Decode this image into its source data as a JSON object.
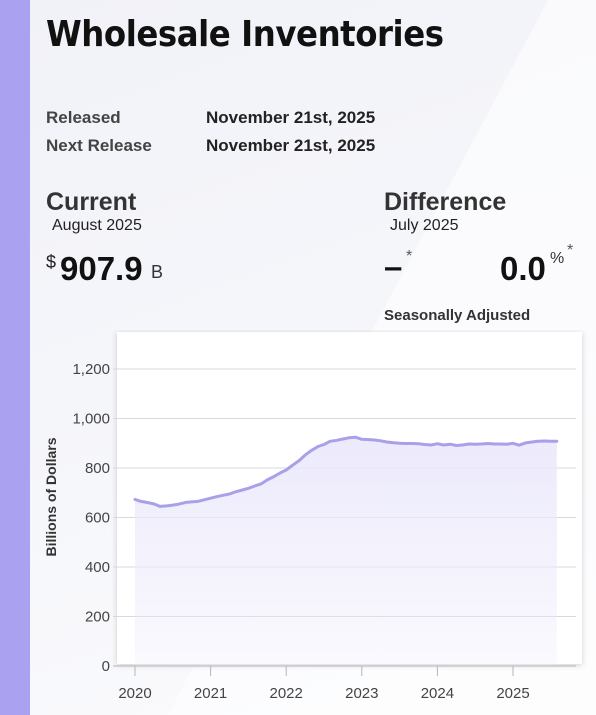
{
  "header": {
    "title": "Wholesale Inventories"
  },
  "release": {
    "released_label": "Released",
    "released_value": "November 21st, 2025",
    "next_label": "Next Release",
    "next_value": "November 21st, 2025"
  },
  "current": {
    "heading": "Current",
    "period": "August 2025",
    "currency": "$",
    "value": "907.9",
    "unit": "B"
  },
  "difference": {
    "heading": "Difference",
    "period": "July 2025",
    "absolute": "–",
    "absolute_mark": "*",
    "percent": "0.0",
    "percent_sign": "%",
    "percent_mark": "*"
  },
  "seasonally_adjusted": "Seasonally Adjusted",
  "colors": {
    "accent": "#aaa2f0",
    "line": "#a9a0ea",
    "fill": "#ebe9fb"
  },
  "chart_data": {
    "type": "area",
    "ylabel": "Billions of Dollars",
    "ylim": [
      0,
      1300
    ],
    "yticks": [
      0,
      200,
      400,
      600,
      800,
      1000,
      1200
    ],
    "ytick_labels": [
      "0",
      "200",
      "400",
      "600",
      "800",
      "1,000",
      "1,200"
    ],
    "xlim": [
      2020,
      2025.95
    ],
    "xticks": [
      2020,
      2021,
      2022,
      2023,
      2024,
      2025
    ],
    "xtick_labels": [
      "2020",
      "2021",
      "2022",
      "2023",
      "2024",
      "2025"
    ],
    "grid": true,
    "series": [
      {
        "x": [
          2020.0,
          2020.08,
          2020.17,
          2020.25,
          2020.33,
          2020.42,
          2020.5,
          2020.58,
          2020.67,
          2020.75,
          2020.83,
          2020.92,
          2021.0,
          2021.08,
          2021.17,
          2021.25,
          2021.33,
          2021.42,
          2021.5,
          2021.58,
          2021.67,
          2021.75,
          2021.83,
          2021.92,
          2022.0,
          2022.08,
          2022.17,
          2022.25,
          2022.33,
          2022.42,
          2022.5,
          2022.58,
          2022.67,
          2022.75,
          2022.83,
          2022.92,
          2023.0,
          2023.08,
          2023.17,
          2023.25,
          2023.33,
          2023.42,
          2023.5,
          2023.58,
          2023.67,
          2023.75,
          2023.83,
          2023.92,
          2024.0,
          2024.08,
          2024.17,
          2024.25,
          2024.33,
          2024.42,
          2024.5,
          2024.58,
          2024.67,
          2024.75,
          2024.83,
          2024.92,
          2025.0,
          2025.08,
          2025.17,
          2025.25,
          2025.33,
          2025.42,
          2025.5,
          2025.58
        ],
        "values": [
          673,
          665,
          660,
          655,
          645,
          647,
          650,
          654,
          661,
          663,
          665,
          672,
          678,
          684,
          690,
          695,
          704,
          711,
          718,
          727,
          736,
          752,
          764,
          780,
          792,
          810,
          830,
          852,
          870,
          887,
          895,
          908,
          912,
          917,
          922,
          924,
          916,
          915,
          913,
          910,
          905,
          902,
          900,
          899,
          899,
          898,
          895,
          893,
          898,
          893,
          896,
          891,
          893,
          897,
          896,
          897,
          899,
          897,
          897,
          896,
          900,
          892,
          902,
          905,
          908,
          909,
          908,
          908
        ]
      }
    ]
  }
}
